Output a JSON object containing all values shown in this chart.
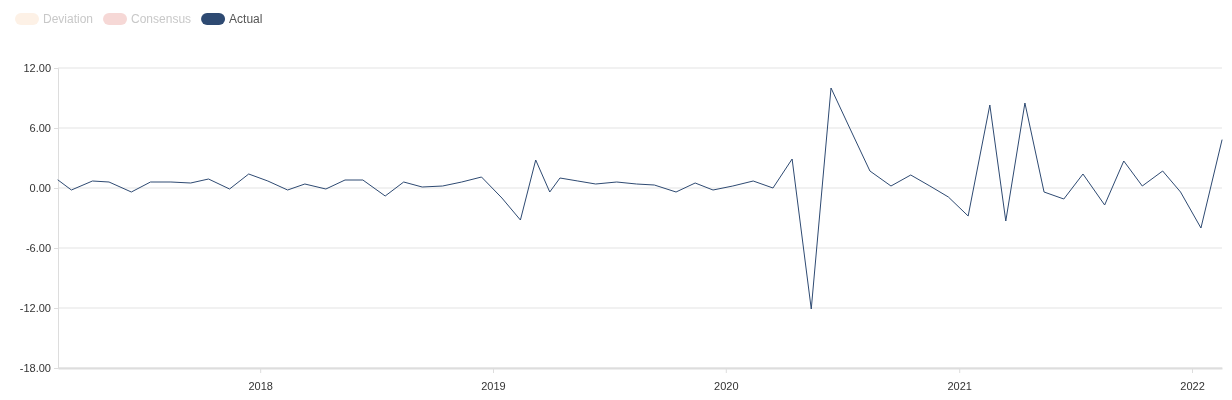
{
  "chart_data": {
    "type": "line",
    "x": [
      "2017-02-18",
      "2017-03-11",
      "2017-04-13",
      "2017-05-09",
      "2017-06-13",
      "2017-07-13",
      "2017-08-14",
      "2017-09-14",
      "2017-10-12",
      "2017-11-14",
      "2017-12-14",
      "2018-01-13",
      "2018-02-13",
      "2018-03-12",
      "2018-04-14",
      "2018-05-14",
      "2018-06-11",
      "2018-07-16",
      "2018-08-14",
      "2018-09-12",
      "2018-10-14",
      "2018-11-13",
      "2018-12-14",
      "2019-01-15",
      "2019-02-13",
      "2019-03-09",
      "2019-03-31",
      "2019-04-16",
      "2019-05-14",
      "2019-06-11",
      "2019-07-14",
      "2019-08-14",
      "2019-09-11",
      "2019-10-15",
      "2019-11-14",
      "2019-12-12",
      "2020-01-12",
      "2020-02-13",
      "2020-03-15",
      "2020-04-14",
      "2020-05-14",
      "2020-06-14",
      "2020-07-14",
      "2020-08-14",
      "2020-09-16",
      "2020-10-17",
      "2020-11-16",
      "2020-12-15",
      "2021-01-15",
      "2021-02-18",
      "2021-03-15",
      "2021-04-14",
      "2021-05-14",
      "2021-06-14",
      "2021-07-14",
      "2021-08-17",
      "2021-09-16",
      "2021-10-15",
      "2021-11-16",
      "2021-12-14",
      "2022-01-15",
      "2022-02-17"
    ],
    "series": [
      {
        "name": "Deviation",
        "color": "#fdf1e6",
        "values": [
          null,
          null,
          null,
          null,
          null,
          null,
          null,
          null,
          null,
          null,
          null,
          null,
          null,
          null,
          null,
          null,
          null,
          null,
          null,
          null,
          null,
          null,
          null,
          null,
          null,
          null,
          null,
          null,
          null,
          null,
          null,
          null,
          null,
          null,
          null,
          null,
          null,
          null,
          null,
          null,
          null,
          null,
          null,
          null,
          null,
          null,
          null,
          null,
          null,
          null,
          null,
          null,
          null,
          null,
          null,
          null,
          null,
          null,
          null,
          null,
          null,
          null
        ]
      },
      {
        "name": "Consensus",
        "color": "#f6d8d6",
        "values": [
          null,
          null,
          null,
          null,
          null,
          null,
          null,
          null,
          null,
          null,
          null,
          null,
          null,
          null,
          null,
          null,
          null,
          null,
          null,
          null,
          null,
          null,
          null,
          null,
          null,
          null,
          null,
          null,
          null,
          null,
          null,
          null,
          null,
          null,
          null,
          null,
          null,
          null,
          null,
          null,
          null,
          null,
          null,
          null,
          null,
          null,
          null,
          null,
          null,
          null,
          null,
          null,
          null,
          null,
          null,
          null,
          null,
          null,
          null,
          null,
          null,
          null
        ]
      },
      {
        "name": "Actual",
        "color": "#2e4a72",
        "values": [
          0.8,
          -0.2,
          0.7,
          0.6,
          -0.4,
          0.6,
          0.6,
          0.5,
          0.9,
          -0.1,
          1.4,
          0.7,
          -0.2,
          0.4,
          -0.1,
          0.8,
          0.8,
          -0.8,
          0.6,
          0.1,
          0.2,
          0.6,
          1.1,
          -1.0,
          -3.2,
          2.8,
          -0.4,
          1.0,
          0.7,
          0.4,
          0.6,
          0.4,
          0.3,
          -0.4,
          0.5,
          -0.2,
          0.2,
          0.7,
          0.0,
          2.9,
          -12.1,
          10.0,
          5.9,
          1.7,
          0.2,
          1.3,
          0.2,
          -0.9,
          -2.8,
          8.3,
          -3.3,
          8.5,
          -0.4,
          -1.1,
          1.4,
          -1.7,
          2.7,
          0.2,
          1.7,
          -0.4,
          -4.0,
          4.8
        ]
      }
    ],
    "xlim": [
      "2017-02-18",
      "2022-02-17"
    ],
    "xticks": [
      "2018",
      "2019",
      "2020",
      "2021",
      "2022"
    ],
    "ylim": [
      -18,
      12
    ],
    "yticks": [
      {
        "value": -18,
        "label": "-18.00"
      },
      {
        "value": -12,
        "label": "-12.00"
      },
      {
        "value": -6,
        "label": "-6.00"
      },
      {
        "value": 0,
        "label": "0.00"
      },
      {
        "value": 6,
        "label": "6.00"
      },
      {
        "value": 12,
        "label": "12.00"
      }
    ],
    "grid": "y",
    "legend": "top left",
    "marker": "none",
    "line_style": "solid"
  }
}
